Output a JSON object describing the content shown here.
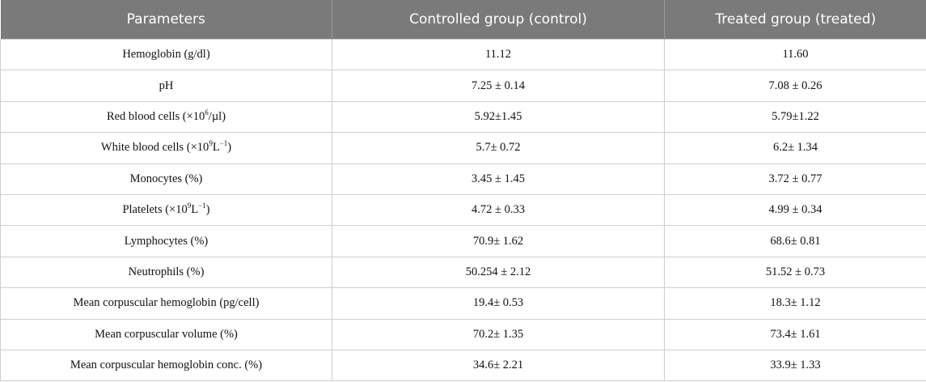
{
  "table": {
    "headers": [
      "Parameters",
      "Controlled group (control)",
      "Treated group (treated)"
    ],
    "rows": [
      {
        "param": "Hemoglobin (g/dl)",
        "control": "11.12",
        "treated": "11.60"
      },
      {
        "param": "pH",
        "control": "7.25 ± 0.14",
        "treated": "7.08 ± 0.26"
      },
      {
        "param_parts": {
          "pre": "Red blood cells (×10",
          "sup": "6",
          "post": "/µl)"
        },
        "control": "5.92±1.45",
        "treated": "5.79±1.22"
      },
      {
        "param_parts": {
          "pre": "White blood cells (×10",
          "sup": "9",
          "mid": "L",
          "sup2": "−1",
          "post": ")"
        },
        "control": "5.7± 0.72",
        "treated": "6.2± 1.34"
      },
      {
        "param": "Monocytes (%)",
        "control": "3.45 ± 1.45",
        "treated": "3.72 ± 0.77"
      },
      {
        "param_parts": {
          "pre": "Platelets (×10",
          "sup": "9",
          "mid": "L",
          "sup2": "−1",
          "post": ")"
        },
        "control": "4.72 ± 0.33",
        "treated": "4.99 ± 0.34"
      },
      {
        "param": "Lymphocytes (%)",
        "control": "70.9± 1.62",
        "treated": "68.6± 0.81"
      },
      {
        "param": "Neutrophils (%)",
        "control": "50.254 ± 2.12",
        "treated": "51.52 ± 0.73"
      },
      {
        "param": "Mean corpuscular hemoglobin (pg/cell)",
        "control": "19.4± 0.53",
        "treated": "18.3± 1.12"
      },
      {
        "param": "Mean corpuscular volume (%)",
        "control": "70.2± 1.35",
        "treated": "73.4± 1.61"
      },
      {
        "param": "Mean corpuscular hemoglobin conc. (%)",
        "control": "34.6± 2.21",
        "treated": "33.9± 1.33"
      }
    ]
  }
}
